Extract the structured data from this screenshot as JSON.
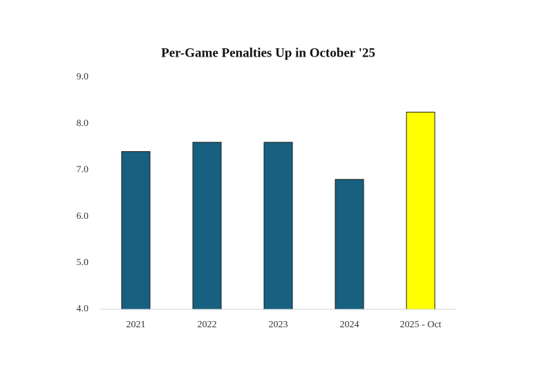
{
  "chart_data": {
    "type": "bar",
    "title": "Per-Game Penalties Up in October '25",
    "categories": [
      "2021",
      "2022",
      "2023",
      "2024",
      "2025 - Oct"
    ],
    "values": [
      7.4,
      7.6,
      7.6,
      6.8,
      8.25
    ],
    "colors": [
      "#17607f",
      "#17607f",
      "#17607f",
      "#17607f",
      "#ffff00"
    ],
    "ylim": [
      4,
      9
    ],
    "yticks": [
      {
        "value": 4,
        "label": "4.0"
      },
      {
        "value": 5,
        "label": "5.0"
      },
      {
        "value": 6,
        "label": "6.0"
      },
      {
        "value": 7,
        "label": "7.0"
      },
      {
        "value": 8,
        "label": "8.0"
      },
      {
        "value": 9,
        "label": "9.0"
      }
    ],
    "grid": false
  }
}
